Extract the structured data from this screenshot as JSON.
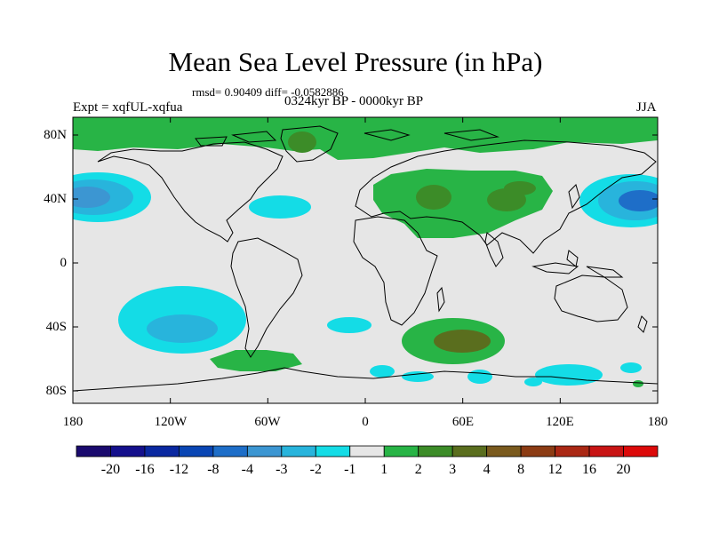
{
  "title": "Mean Sea Level Pressure (in hPa)",
  "stats": "rmsd= 0.90409 diff= -0.0582886",
  "period": "0324kyr BP - 0000kyr BP",
  "experiment": "Expt = xqfUL-xqfua",
  "season": "JJA",
  "lat_labels": [
    "80N",
    "40N",
    "0",
    "40S",
    "80S"
  ],
  "lon_labels": [
    "180",
    "120W",
    "60W",
    "0",
    "60E",
    "120E",
    "180"
  ],
  "colorbar": {
    "labels": [
      "-20",
      "-16",
      "-12",
      "-8",
      "-4",
      "-3",
      "-2",
      "-1",
      "1",
      "2",
      "3",
      "4",
      "8",
      "12",
      "16",
      "20"
    ],
    "colors": [
      "#1a0a6e",
      "#14108c",
      "#0a28a0",
      "#0a46b4",
      "#1e6ec8",
      "#3c96d2",
      "#28b4dc",
      "#14dce6",
      "#e6e6e6",
      "#28b446",
      "#3c8c28",
      "#5a6e1e",
      "#7a5a1e",
      "#8c3c14",
      "#aa2814",
      "#c81414",
      "#dc0a0a"
    ]
  },
  "colors": {
    "background": "#e6e6e6",
    "pos1": "#28b446",
    "pos2": "#3c8c28",
    "pos3": "#5a6e1e",
    "neg1": "#14dce6",
    "neg2": "#28b4dc",
    "neg3": "#3c96d2",
    "neg4": "#1e6ec8"
  }
}
